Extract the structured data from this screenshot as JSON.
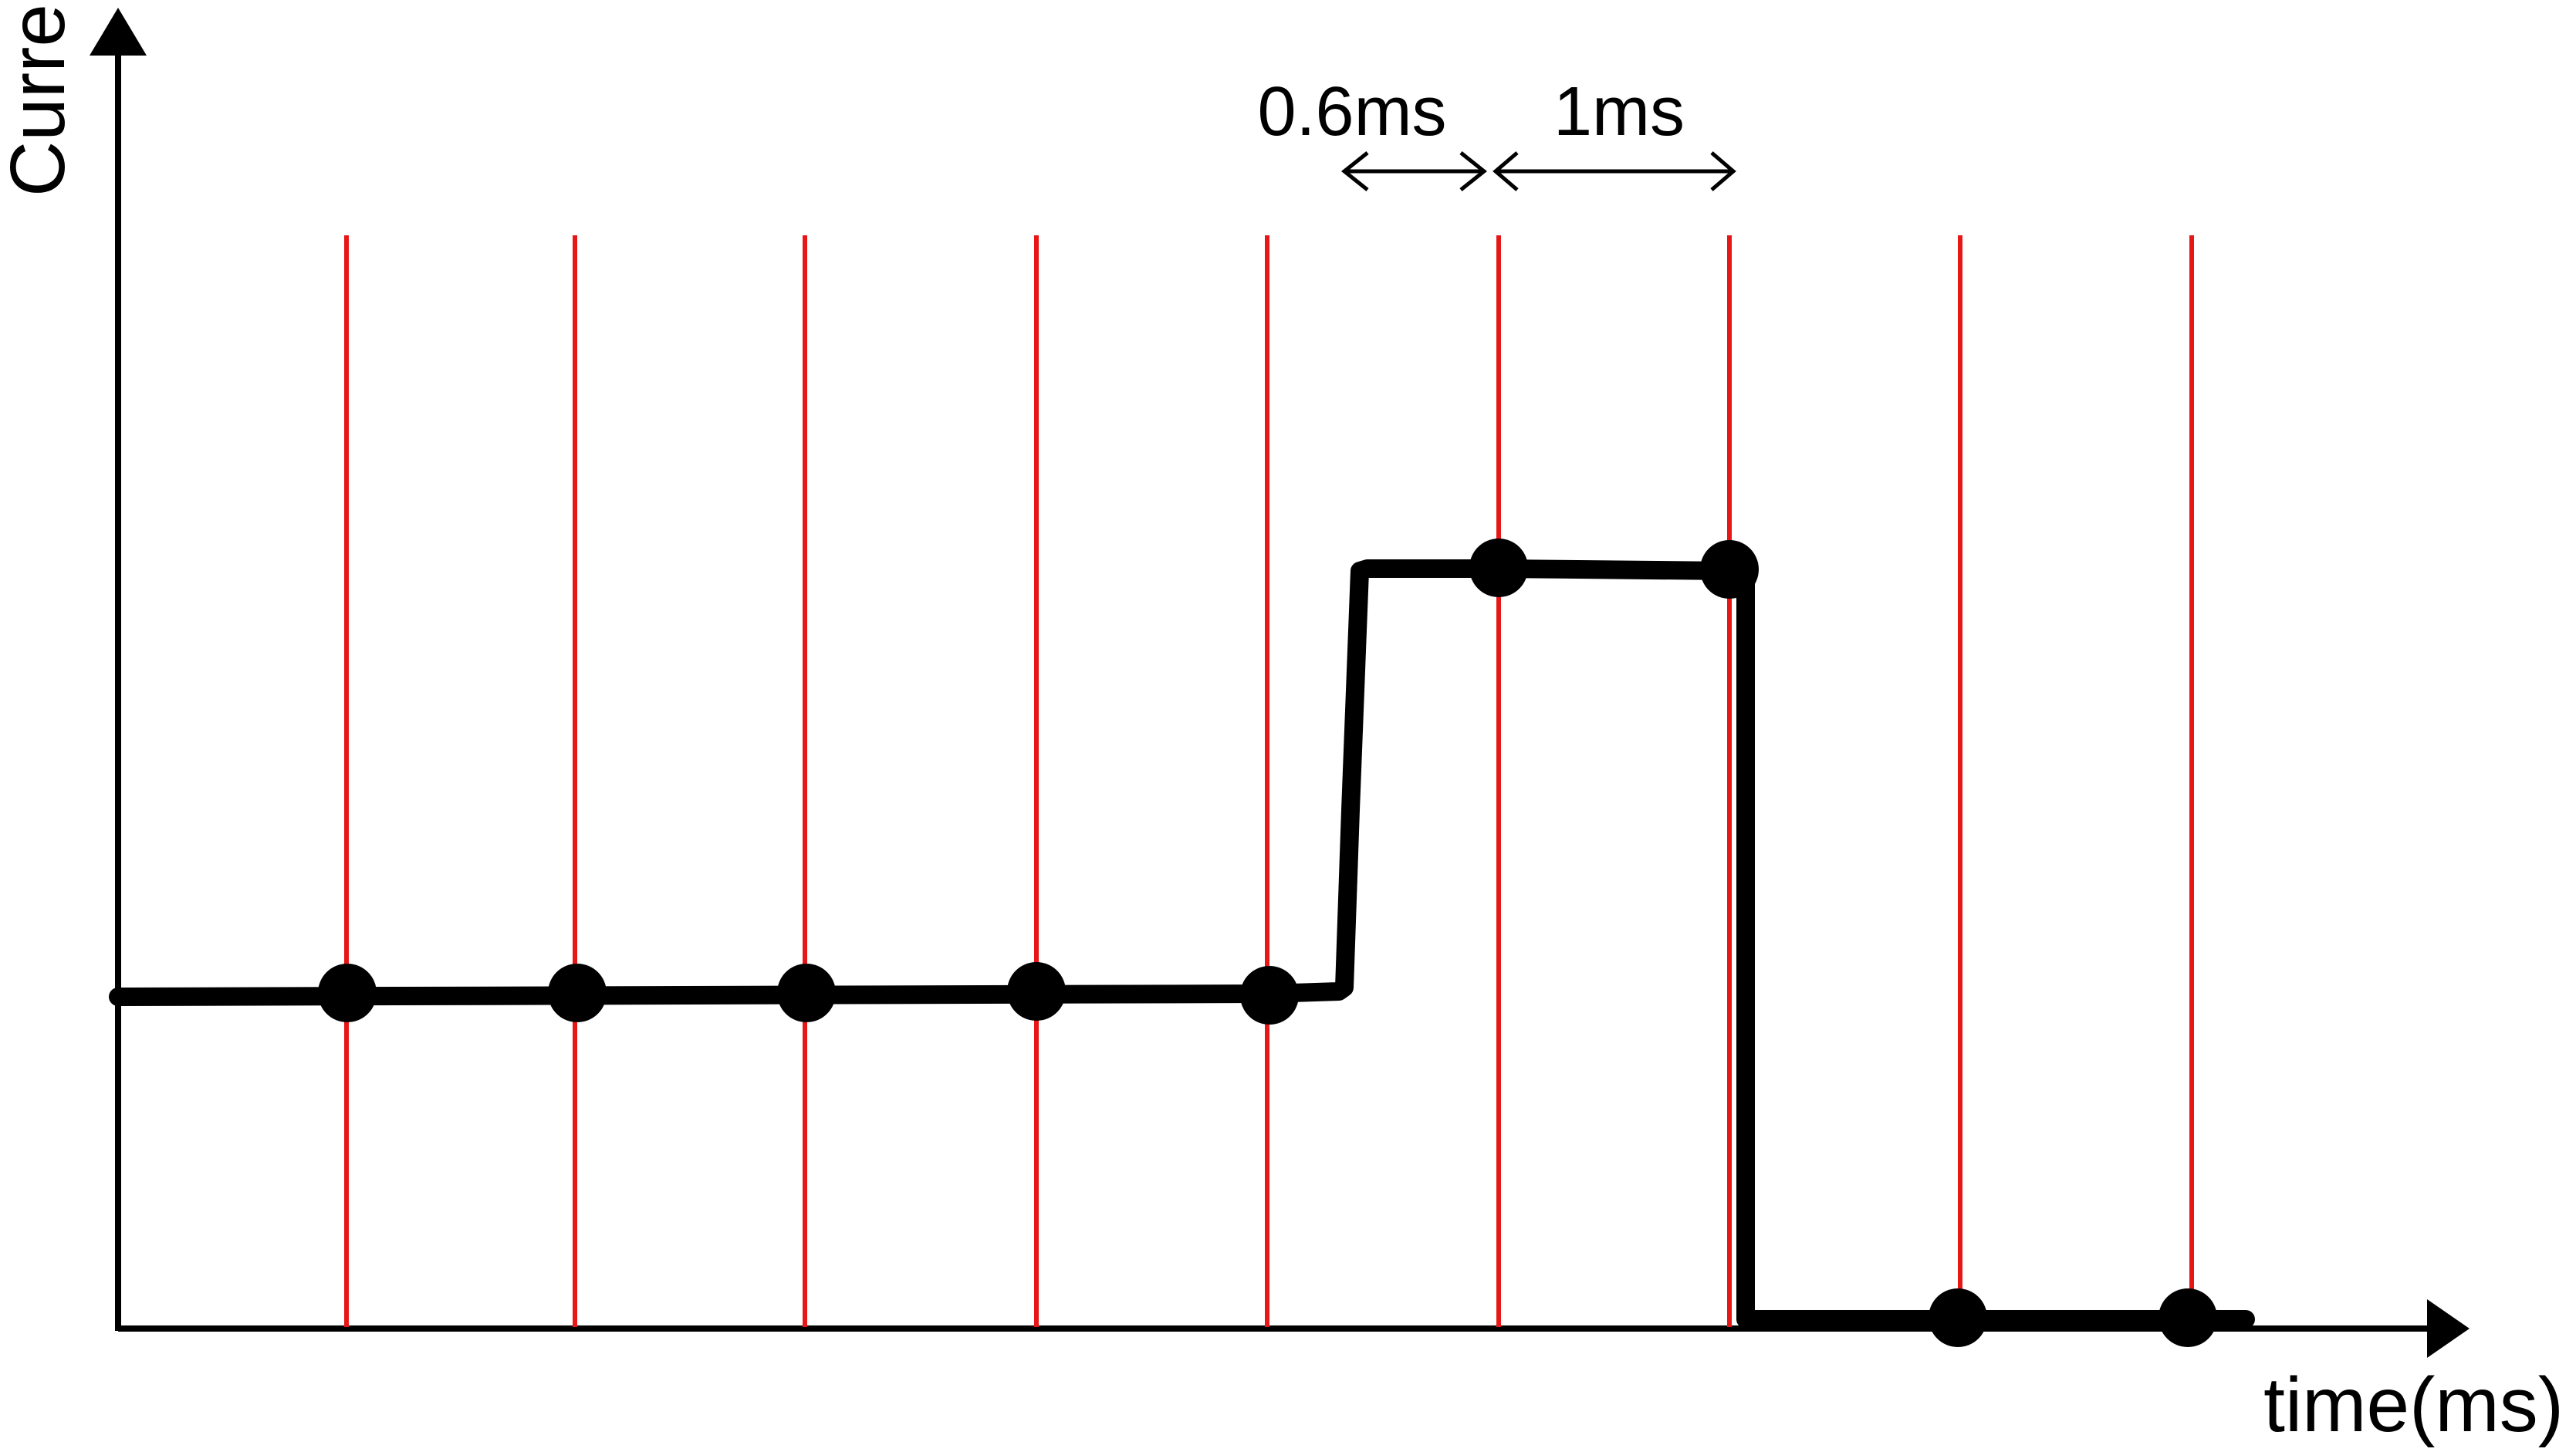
{
  "axes": {
    "y_label": "Current(A)",
    "x_label": "time(ms)",
    "axis_color": "#000000"
  },
  "annotations": {
    "interval_short": "0.6ms",
    "interval_long": "1ms"
  },
  "sample_lines": {
    "count": 9,
    "color": "#e81717"
  },
  "waveform": {
    "color": "#000000",
    "sample_count": 9
  }
}
